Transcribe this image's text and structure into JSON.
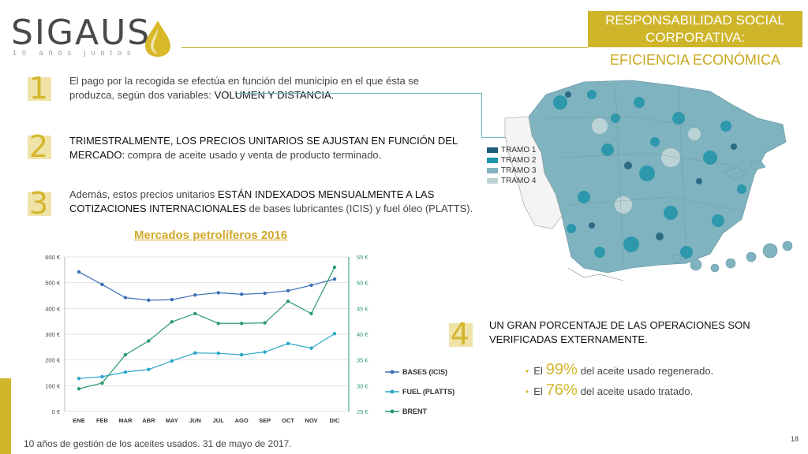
{
  "logo": {
    "name": "SIGAUS",
    "tagline": "10 años juntos"
  },
  "header": {
    "box_line1": "RESPONSABILIDAD SOCIAL",
    "box_line2": "CORPORATIVA:",
    "subtitle": "EFICIENCIA ECONÓMICA"
  },
  "points": [
    {
      "number": "1",
      "text_a": "El pago por la recogida se efectúa en función del municipio en el que ésta se produzca, según dos variables: ",
      "text_b": "VOLUMEN Y DISTANCIA."
    },
    {
      "number": "2",
      "text_a": "TRIMESTRALMENTE, LOS PRECIOS UNITARIOS SE AJUSTAN EN FUNCIÓN DEL MERCADO:",
      "text_b": " compra de aceite usado y venta de producto terminado."
    },
    {
      "number": "3",
      "text_a": "Además, estos precios unitarios ",
      "text_b": "ESTÁN INDEXADOS MENSUALMENTE A LAS COTIZACIONES INTERNACIONALES",
      "text_c": " de bases lubricantes (ICIS) y fuel óleo (PLATTS)."
    },
    {
      "number": "4",
      "text_a": "UN GRAN PORCENTAJE DE LAS OPERACIONES SON VERIFICADAS EXTERNAMENTE."
    }
  ],
  "bullets": [
    {
      "prefix": "El",
      "pct": "99%",
      "suffix": "del aceite usado regenerado."
    },
    {
      "prefix": "El",
      "pct": "76%",
      "suffix": "del aceite usado tratado."
    }
  ],
  "map_legend": [
    {
      "label": "TRAMO 1",
      "color": "#1f5e7a"
    },
    {
      "label": "TRAMO 2",
      "color": "#1f94a8"
    },
    {
      "label": "TRAMO 3",
      "color": "#7fb3bf"
    },
    {
      "label": "TRAMO 4",
      "color": "#bcd3d6"
    }
  ],
  "chart_data": {
    "type": "line",
    "title": "Mercados petrolíferos 2016",
    "categories": [
      "ENE",
      "FEB",
      "MAR",
      "ABR",
      "MAY",
      "JUN",
      "JUL",
      "AGO",
      "SEP",
      "OCT",
      "NOV",
      "DIC"
    ],
    "y_left": {
      "ticks": [
        "0 €",
        "100 €",
        "200 €",
        "300 €",
        "400 €",
        "500 €",
        "600 €"
      ],
      "ylim": [
        0,
        600
      ]
    },
    "y_right": {
      "ticks": [
        "25 €",
        "30 €",
        "35 €",
        "40 €",
        "45 €",
        "50 €",
        "55 €"
      ],
      "ylim": [
        25,
        55
      ]
    },
    "series": [
      {
        "name": "BASES (ICIS)",
        "axis": "left",
        "color": "#3d6fb6",
        "values": [
          542,
          493,
          442,
          432,
          434,
          452,
          461,
          455,
          459,
          469,
          490,
          514
        ]
      },
      {
        "name": "FUEL (PLATTS)",
        "axis": "left",
        "color": "#28a7c9",
        "values": [
          128,
          135,
          153,
          163,
          196,
          227,
          226,
          220,
          231,
          264,
          246,
          302
        ]
      },
      {
        "name": "BRENT",
        "axis": "right",
        "color": "#2c9a6e",
        "values": [
          29.4,
          30.5,
          36.0,
          38.7,
          42.4,
          44.0,
          42.1,
          42.1,
          42.2,
          46.4,
          44.0,
          53.0
        ]
      }
    ],
    "grid": true,
    "legend_position": "right"
  },
  "footer": {
    "text": "10 años de gestión de los aceites usados. 31 de mayo de 2017.",
    "page": "18"
  }
}
